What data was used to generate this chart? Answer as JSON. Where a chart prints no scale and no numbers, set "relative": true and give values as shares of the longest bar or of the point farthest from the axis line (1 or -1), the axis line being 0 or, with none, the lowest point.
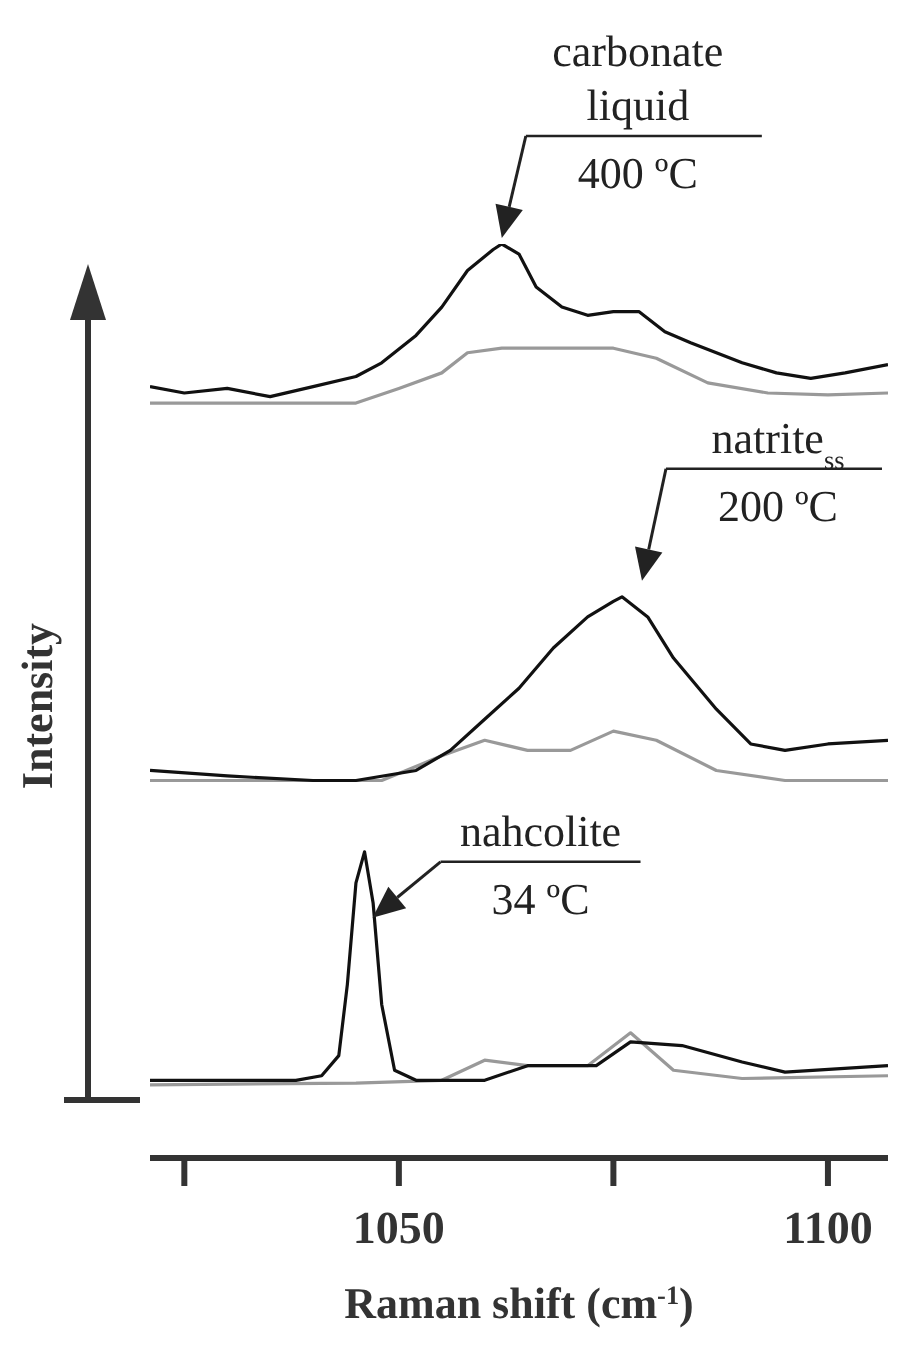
{
  "chart_data": {
    "type": "line",
    "relative": true,
    "xlabel": "Raman shift (cm$^{-1}$)",
    "ylabel": "Intensity",
    "xlim": [
      1021,
      1107
    ],
    "xticks": [
      {
        "value": 1025,
        "label": null
      },
      1050,
      {
        "value": 1075,
        "label": null
      },
      1100
    ],
    "series": [
      {
        "color": "#999999",
        "x": [
          1021,
          1030,
          1040,
          1045,
          1050,
          1055,
          1058,
          1062,
          1068,
          1075,
          1080,
          1086,
          1093,
          1100,
          1107
        ],
        "values": [
          0.826,
          0.826,
          0.826,
          0.826,
          0.842,
          0.859,
          0.881,
          0.886,
          0.886,
          0.886,
          0.875,
          0.848,
          0.837,
          0.835,
          0.837
        ]
      },
      {
        "color": "#111111",
        "x": [
          1021,
          1025,
          1030,
          1035,
          1040,
          1045,
          1048,
          1052,
          1055,
          1058,
          1061,
          1062,
          1064,
          1066,
          1069,
          1072,
          1075,
          1078,
          1081,
          1084,
          1087,
          1090,
          1094,
          1098,
          1102,
          1107
        ],
        "values": [
          0.844,
          0.837,
          0.842,
          0.833,
          0.844,
          0.855,
          0.87,
          0.9,
          0.931,
          0.971,
          0.994,
          1,
          0.989,
          0.953,
          0.931,
          0.922,
          0.926,
          0.926,
          0.904,
          0.892,
          0.881,
          0.87,
          0.859,
          0.853,
          0.859,
          0.868
        ]
      },
      {
        "color": "#999999",
        "x": [
          1021,
          1048,
          1055,
          1060,
          1065,
          1070,
          1075,
          1080,
          1087,
          1095,
          1107
        ],
        "values": [
          0.413,
          0.413,
          0.44,
          0.457,
          0.446,
          0.446,
          0.467,
          0.457,
          0.424,
          0.413,
          0.413
        ]
      },
      {
        "color": "#111111",
        "x": [
          1021,
          1030,
          1040,
          1045,
          1052,
          1056,
          1060,
          1064,
          1068,
          1072,
          1075,
          1076,
          1079,
          1082,
          1087,
          1091,
          1095,
          1100,
          1107
        ],
        "values": [
          0.424,
          0.418,
          0.413,
          0.413,
          0.424,
          0.446,
          0.48,
          0.514,
          0.558,
          0.592,
          0.609,
          0.614,
          0.592,
          0.547,
          0.491,
          0.453,
          0.446,
          0.453,
          0.457
        ]
      },
      {
        "color": "#999999",
        "x": [
          1021,
          1045,
          1055,
          1060,
          1065,
          1072,
          1077,
          1082,
          1090,
          1107
        ],
        "values": [
          0.08,
          0.082,
          0.085,
          0.107,
          0.101,
          0.101,
          0.137,
          0.096,
          0.087,
          0.09
        ]
      },
      {
        "color": "#111111",
        "x": [
          1021,
          1030,
          1038,
          1041,
          1043,
          1044,
          1045,
          1046,
          1047,
          1048,
          1049.5,
          1052,
          1060,
          1065,
          1073,
          1077,
          1083,
          1090,
          1095,
          1107
        ],
        "values": [
          0.085,
          0.085,
          0.085,
          0.09,
          0.112,
          0.19,
          0.301,
          0.335,
          0.279,
          0.168,
          0.096,
          0.085,
          0.085,
          0.101,
          0.101,
          0.127,
          0.123,
          0.105,
          0.094,
          0.101
        ]
      }
    ],
    "annotations": [
      {
        "text": "carbonate\nliquid\n400 ºC",
        "x": 1062,
        "y": 1
      },
      {
        "text": "natrite$_{ss}$\n200 ºC",
        "x": 1076,
        "y": 0.614
      },
      {
        "text": "nahcolite\n34 ºC",
        "x": 1046,
        "y": 0.335
      }
    ]
  }
}
